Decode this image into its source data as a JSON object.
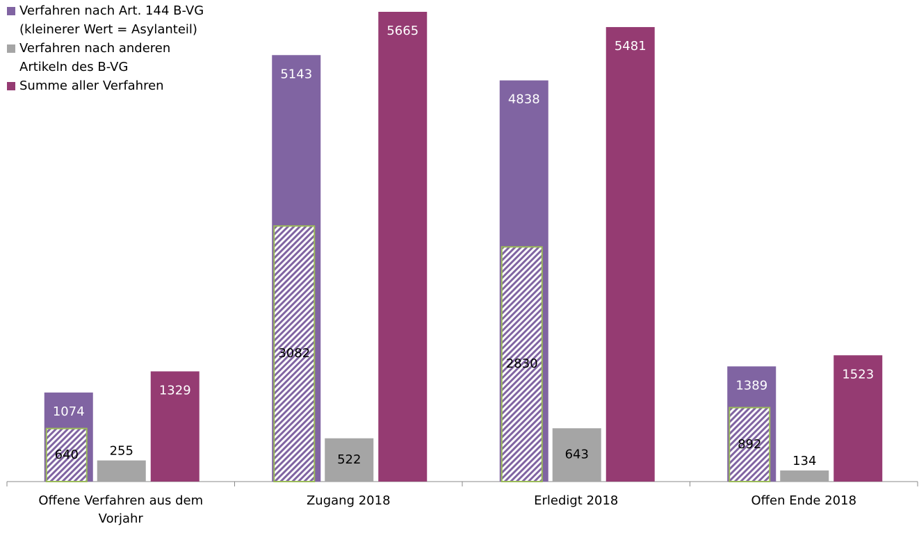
{
  "chart_data": {
    "type": "bar",
    "categories": [
      "Offene Verfahren aus dem Vorjahr",
      "Zugang 2018",
      "Erledigt 2018",
      "Offen Ende 2018"
    ],
    "series": [
      {
        "name": [
          "Verfahren nach Art. 144 B-VG",
          "(kleinerer Wert = Asylanteil)"
        ],
        "color": "#8064a2",
        "values": [
          1074,
          5143,
          4838,
          1389
        ],
        "inner_values": [
          640,
          3082,
          2830,
          892
        ]
      },
      {
        "name": [
          "Verfahren nach anderen",
          "Artikeln des B-VG"
        ],
        "color": "#a5a5a5",
        "values": [
          255,
          522,
          643,
          134
        ]
      },
      {
        "name": [
          "Summe aller Verfahren"
        ],
        "color": "#953b72",
        "values": [
          1329,
          5665,
          5481,
          1523
        ]
      }
    ],
    "ylim": [
      0,
      5665
    ],
    "grid": false
  }
}
